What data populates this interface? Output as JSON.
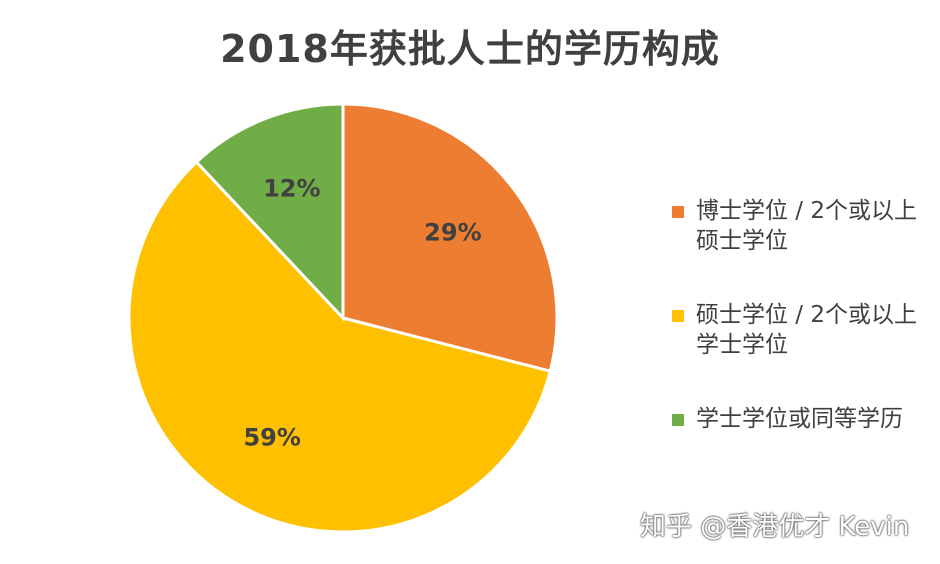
{
  "chart_data": {
    "type": "pie",
    "title": "2018年获批人士的学历构成",
    "slices": [
      {
        "label": "博士学位 / 2个或以上硕士学位",
        "value": 29,
        "display": "29%",
        "color": "#ED7D31"
      },
      {
        "label": "硕士学位 / 2个或以上学士学位",
        "value": 59,
        "display": "59%",
        "color": "#FFC000"
      },
      {
        "label": "学士学位或同等学历",
        "value": 12,
        "display": "12%",
        "color": "#70AD47"
      }
    ],
    "start_angle_deg": 0,
    "direction": "clockwise",
    "legend_position": "right"
  },
  "legend": {
    "entries": [
      {
        "text": "博士学位 / 2个或以上硕士学位",
        "color": "#ED7D31"
      },
      {
        "text": "硕士学位 / 2个或以上学士学位",
        "color": "#FFC000"
      },
      {
        "text": "学士学位或同等学历",
        "color": "#70AD47"
      }
    ]
  },
  "watermark": "知乎 @香港优才 Kevin"
}
